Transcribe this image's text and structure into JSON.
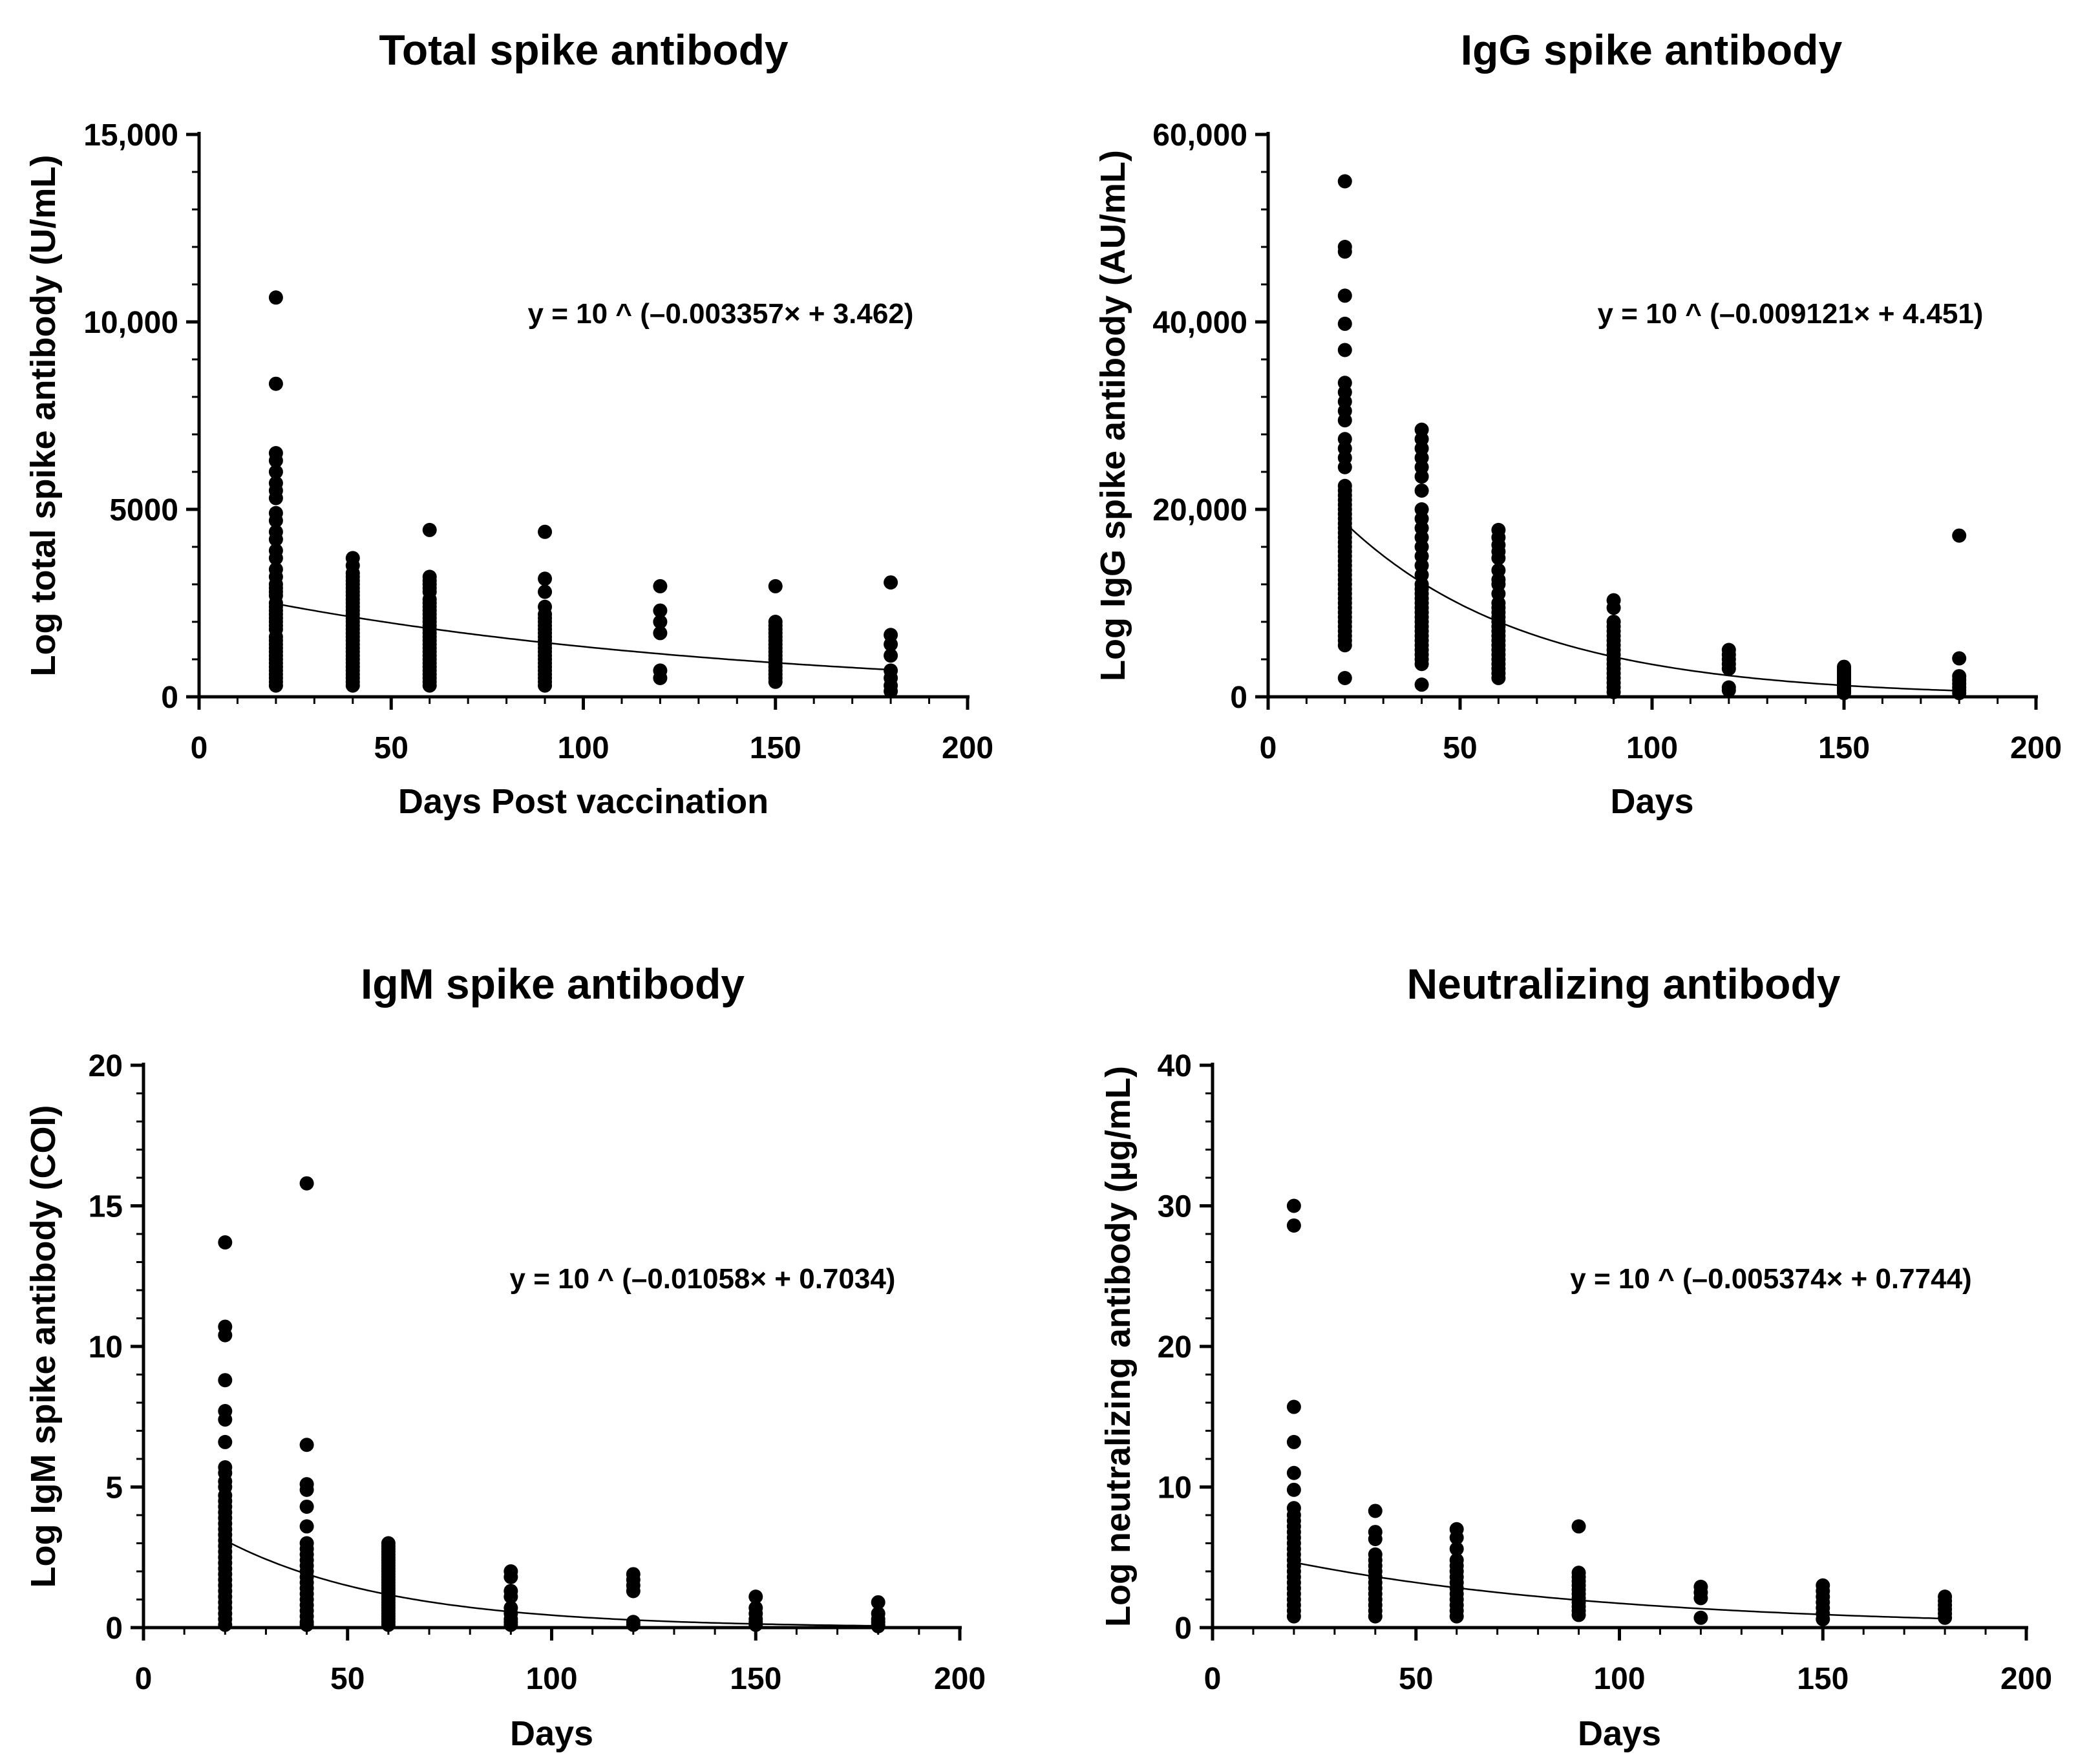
{
  "chart_data": [
    {
      "type": "scatter",
      "title": "Total spike antibody",
      "xlabel": "Days Post vaccination",
      "ylabel": "Log total spike antibody (U/mL)",
      "xlim": [
        0,
        200
      ],
      "ylim": [
        0,
        15000
      ],
      "x_ticks": [
        0,
        50,
        100,
        150,
        200
      ],
      "x_tick_labels": [
        "0",
        "50",
        "100",
        "150",
        "200"
      ],
      "y_ticks": [
        0,
        5000,
        10000,
        15000
      ],
      "y_tick_labels": [
        "0",
        "5000",
        "10,000",
        "15,000"
      ],
      "equation": "y = 10 ^ (–0.003357× + 3.462)",
      "fit": {
        "a": -0.003357,
        "b": 3.462,
        "x_range": [
          20,
          180
        ]
      },
      "points": [
        {
          "x": 20,
          "y": [
            10650,
            8350,
            6500,
            6300,
            6000,
            5700,
            5500,
            5300,
            4900,
            4700,
            4400,
            4200,
            3900,
            3700,
            3400,
            3200,
            3000,
            2900,
            2800,
            2700,
            2500,
            2400,
            2300,
            2200,
            2100,
            2000,
            1900,
            1800,
            1600,
            1500,
            1400,
            1300,
            1200,
            1100,
            1000,
            900,
            800,
            700,
            600,
            500,
            400,
            300
          ]
        },
        {
          "x": 40,
          "y": [
            3700,
            3500,
            3300,
            3200,
            3100,
            3000,
            2900,
            2800,
            2700,
            2600,
            2500,
            2400,
            2300,
            2200,
            2100,
            2000,
            1900,
            1800,
            1700,
            1600,
            1500,
            1400,
            1300,
            1200,
            1100,
            1000,
            900,
            800,
            700,
            600,
            500,
            400,
            300
          ]
        },
        {
          "x": 60,
          "y": [
            4450,
            3200,
            3100,
            3000,
            2900,
            2800,
            2600,
            2500,
            2400,
            2300,
            2200,
            2100,
            2000,
            1900,
            1800,
            1700,
            1600,
            1500,
            1400,
            1300,
            1200,
            1100,
            1000,
            900,
            800,
            700,
            600,
            500,
            400,
            300
          ]
        },
        {
          "x": 90,
          "y": [
            4400,
            3150,
            2800,
            2400,
            2200,
            2100,
            2000,
            1900,
            1800,
            1700,
            1600,
            1500,
            1400,
            1300,
            1200,
            1100,
            1000,
            900,
            800,
            700,
            600,
            500,
            400,
            300
          ]
        },
        {
          "x": 120,
          "y": [
            2950,
            2300,
            2000,
            1700,
            700,
            500
          ]
        },
        {
          "x": 150,
          "y": [
            2950,
            2000,
            1900,
            1800,
            1700,
            1600,
            1500,
            1400,
            1300,
            1200,
            1100,
            1000,
            900,
            800,
            700,
            600,
            500,
            400
          ]
        },
        {
          "x": 180,
          "y": [
            3050,
            1650,
            1400,
            1100,
            700,
            500,
            300,
            150
          ]
        }
      ]
    },
    {
      "type": "scatter",
      "title": "IgG spike antibody",
      "xlabel": "Days",
      "ylabel": "Log IgG spike antibody (AU/mL)",
      "xlim": [
        0,
        200
      ],
      "ylim": [
        0,
        60000
      ],
      "x_ticks": [
        0,
        50,
        100,
        150,
        200
      ],
      "x_tick_labels": [
        "0",
        "50",
        "100",
        "150",
        "200"
      ],
      "y_ticks": [
        0,
        20000,
        40000,
        60000
      ],
      "y_tick_labels": [
        "0",
        "20,000",
        "40,000",
        "60,000"
      ],
      "equation": "y = 10 ^ (–0.009121× + 4.451)",
      "fit": {
        "a": -0.009121,
        "b": 4.451,
        "x_range": [
          20,
          180
        ]
      },
      "points": [
        {
          "x": 20,
          "y": [
            55000,
            48000,
            47500,
            42800,
            39800,
            37000,
            33500,
            32500,
            31500,
            30500,
            29500,
            27500,
            26500,
            25500,
            24500,
            22500,
            22000,
            21500,
            21000,
            20500,
            20000,
            19500,
            19000,
            18500,
            18000,
            17500,
            17000,
            16500,
            16000,
            15500,
            15000,
            14500,
            14000,
            13500,
            13000,
            12500,
            12000,
            11500,
            11000,
            10500,
            10000,
            9500,
            9000,
            8500,
            8000,
            7500,
            7000,
            6500,
            6000,
            5500,
            2000
          ]
        },
        {
          "x": 40,
          "y": [
            28500,
            27500,
            26500,
            25500,
            24500,
            23500,
            22000,
            20000,
            19000,
            18000,
            17000,
            16000,
            15000,
            14000,
            13000,
            12000,
            11500,
            11000,
            10500,
            10000,
            9500,
            9000,
            8500,
            8000,
            7500,
            7000,
            6500,
            6000,
            5500,
            5000,
            4500,
            4000,
            3500,
            1300
          ]
        },
        {
          "x": 60,
          "y": [
            17800,
            17000,
            16200,
            15500,
            14800,
            13500,
            12500,
            12000,
            11000,
            10000,
            9500,
            9000,
            8500,
            8000,
            7500,
            7000,
            6500,
            6000,
            5500,
            5000,
            4500,
            4000,
            3500,
            3000,
            2500,
            2000
          ]
        },
        {
          "x": 90,
          "y": [
            10300,
            9500,
            8000,
            7500,
            7000,
            6500,
            6000,
            5500,
            5000,
            4500,
            4000,
            3500,
            3000,
            2500,
            2000,
            1500,
            1000,
            500
          ]
        },
        {
          "x": 120,
          "y": [
            5000,
            4500,
            4000,
            3500,
            3000,
            1000,
            700
          ]
        },
        {
          "x": 150,
          "y": [
            3200,
            3000,
            2800,
            2600,
            2400,
            2200,
            2000,
            1800,
            1600,
            1400,
            1200,
            1000,
            800,
            600,
            400
          ]
        },
        {
          "x": 180,
          "y": [
            17200,
            4100,
            2200,
            1800,
            1400,
            1000,
            700,
            400
          ]
        }
      ]
    },
    {
      "type": "scatter",
      "title": "IgM spike antibody",
      "xlabel": "Days",
      "ylabel": "Log IgM spike antibody (COI)",
      "xlim": [
        0,
        200
      ],
      "ylim": [
        0,
        20
      ],
      "x_ticks": [
        0,
        50,
        100,
        150,
        200
      ],
      "x_tick_labels": [
        "0",
        "50",
        "100",
        "150",
        "200"
      ],
      "y_ticks": [
        0,
        5,
        10,
        15,
        20
      ],
      "y_tick_labels": [
        "0",
        "5",
        "10",
        "15",
        "20"
      ],
      "equation": "y = 10 ^ (–0.01058× + 0.7034)",
      "fit": {
        "a": -0.01058,
        "b": 0.7034,
        "x_range": [
          20,
          180
        ]
      },
      "points": [
        {
          "x": 20,
          "y": [
            13.7,
            10.7,
            10.4,
            8.8,
            7.7,
            7.4,
            6.6,
            5.7,
            5.5,
            5.2,
            5.0,
            4.7,
            4.5,
            4.3,
            4.1,
            3.9,
            3.7,
            3.5,
            3.3,
            3.1,
            2.9,
            2.7,
            2.5,
            2.3,
            2.1,
            1.9,
            1.7,
            1.5,
            1.3,
            1.1,
            0.9,
            0.7,
            0.5,
            0.3,
            0.1
          ]
        },
        {
          "x": 40,
          "y": [
            15.8,
            6.5,
            5.1,
            4.9,
            4.3,
            3.6,
            3.0,
            2.8,
            2.6,
            2.4,
            2.2,
            2.0,
            1.8,
            1.6,
            1.4,
            1.2,
            1.0,
            0.8,
            0.6,
            0.4,
            0.2,
            0.1
          ]
        },
        {
          "x": 60,
          "y": [
            3.0,
            2.9,
            2.8,
            2.7,
            2.6,
            2.5,
            2.4,
            2.3,
            2.2,
            2.1,
            2.0,
            1.9,
            1.8,
            1.7,
            1.6,
            1.5,
            1.4,
            1.3,
            1.2,
            1.1,
            1.0,
            0.9,
            0.8,
            0.7,
            0.6,
            0.5,
            0.4,
            0.3,
            0.2,
            0.1
          ]
        },
        {
          "x": 90,
          "y": [
            2.0,
            1.8,
            1.3,
            1.1,
            0.7,
            0.5,
            0.3,
            0.2,
            0.1
          ]
        },
        {
          "x": 120,
          "y": [
            1.9,
            1.7,
            1.5,
            1.3,
            0.2,
            0.1
          ]
        },
        {
          "x": 150,
          "y": [
            1.1,
            0.7,
            0.5,
            0.3,
            0.2,
            0.1
          ]
        },
        {
          "x": 180,
          "y": [
            0.9,
            0.5,
            0.3,
            0.2,
            0.1,
            0.05
          ]
        }
      ]
    },
    {
      "type": "scatter",
      "title": "Neutralizing antibody",
      "xlabel": "Days",
      "ylabel": "Log neutralizing antibody (µg/mL)",
      "xlim": [
        0,
        200
      ],
      "ylim": [
        0,
        40
      ],
      "x_ticks": [
        0,
        50,
        100,
        150,
        200
      ],
      "x_tick_labels": [
        "0",
        "50",
        "100",
        "150",
        "200"
      ],
      "y_ticks": [
        0,
        10,
        20,
        30,
        40
      ],
      "y_tick_labels": [
        "0",
        "10",
        "20",
        "30",
        "40"
      ],
      "equation": "y = 10 ^ (–0.005374× + 0.7744)",
      "fit": {
        "a": -0.005374,
        "b": 0.7744,
        "x_range": [
          20,
          180
        ]
      },
      "points": [
        {
          "x": 20,
          "y": [
            30.0,
            28.6,
            15.7,
            13.2,
            11.0,
            9.8,
            8.5,
            8.0,
            7.6,
            7.2,
            6.8,
            6.4,
            6.0,
            5.6,
            5.2,
            4.8,
            4.4,
            4.0,
            3.6,
            3.2,
            2.8,
            2.4,
            2.0,
            1.6,
            1.2,
            0.8
          ]
        },
        {
          "x": 40,
          "y": [
            8.3,
            6.8,
            6.3,
            5.2,
            4.8,
            4.4,
            4.0,
            3.6,
            3.2,
            2.8,
            2.4,
            2.0,
            1.6,
            1.2,
            0.8
          ]
        },
        {
          "x": 60,
          "y": [
            7.0,
            6.4,
            5.6,
            4.8,
            4.4,
            4.0,
            3.6,
            3.2,
            2.8,
            2.4,
            2.0,
            1.6,
            1.2,
            0.8
          ]
        },
        {
          "x": 90,
          "y": [
            7.2,
            3.9,
            3.6,
            3.3,
            3.0,
            2.7,
            2.4,
            2.1,
            1.8,
            1.5,
            1.2,
            0.9
          ]
        },
        {
          "x": 120,
          "y": [
            2.9,
            2.5,
            2.1,
            0.7
          ]
        },
        {
          "x": 150,
          "y": [
            3.0,
            2.6,
            2.2,
            1.8,
            1.4,
            1.0,
            0.6
          ]
        },
        {
          "x": 180,
          "y": [
            2.2,
            1.9,
            1.6,
            1.3,
            1.0,
            0.7
          ]
        }
      ]
    }
  ]
}
